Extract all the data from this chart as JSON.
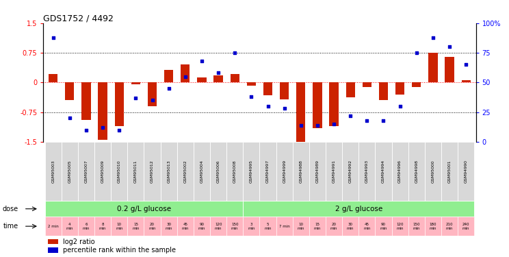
{
  "title": "GDS1752 / 4492",
  "samples": [
    "GSM95003",
    "GSM95005",
    "GSM95007",
    "GSM95009",
    "GSM95010",
    "GSM95011",
    "GSM95012",
    "GSM95013",
    "GSM95002",
    "GSM95004",
    "GSM95006",
    "GSM95008",
    "GSM94995",
    "GSM94997",
    "GSM94999",
    "GSM94988",
    "GSM94989",
    "GSM94991",
    "GSM94992",
    "GSM94993",
    "GSM94994",
    "GSM94996",
    "GSM94998",
    "GSM95000",
    "GSM95001",
    "GSM94990"
  ],
  "log2_ratio": [
    0.22,
    -0.45,
    -0.95,
    -1.45,
    -1.1,
    -0.05,
    -0.6,
    0.32,
    0.45,
    0.12,
    0.18,
    0.22,
    -0.08,
    -0.32,
    -0.42,
    -1.5,
    -1.15,
    -1.1,
    -0.38,
    -0.12,
    -0.45,
    -0.3,
    -0.12,
    0.75,
    0.65,
    0.05
  ],
  "percentile": [
    88,
    20,
    10,
    12,
    10,
    37,
    35,
    45,
    55,
    68,
    58,
    75,
    38,
    30,
    28,
    14,
    14,
    15,
    22,
    18,
    18,
    30,
    75,
    88,
    80,
    65
  ],
  "time_labels_all": [
    "2 min",
    "4\nmin",
    "6\nmin",
    "8\nmin",
    "10\nmin",
    "15\nmin",
    "20\nmin",
    "30\nmin",
    "45\nmin",
    "90\nmin",
    "120\nmin",
    "150\nmin",
    "3\nmin",
    "5\nmin",
    "7 min",
    "10\nmin",
    "15\nmin",
    "20\nmin",
    "30\nmin",
    "45\nmin",
    "90\nmin",
    "120\nmin",
    "150\nmin",
    "180\nmin",
    "210\nmin",
    "240\nmin"
  ],
  "dose_label1": "0.2 g/L glucose",
  "dose_label2": "2 g/L glucose",
  "dose_color": "#90EE90",
  "time_color": "#FFB6C1",
  "sample_bg_color": "#D8D8D8",
  "bar_color": "#CC2200",
  "dot_color": "#0000CC",
  "bg_color": "#FFFFFF",
  "ylim_left": [
    -1.5,
    1.5
  ],
  "yticks_left": [
    -1.5,
    -0.75,
    0,
    0.75,
    1.5
  ],
  "ytick_labels_left": [
    "-1.5",
    "-0.75",
    "0",
    "0.75",
    "1.5"
  ],
  "yticks_right": [
    0,
    25,
    50,
    75,
    100
  ],
  "ytick_labels_right": [
    "0",
    "25",
    "50",
    "75",
    "100%"
  ],
  "n_group1": 12,
  "n_group2": 14,
  "n_total": 26
}
